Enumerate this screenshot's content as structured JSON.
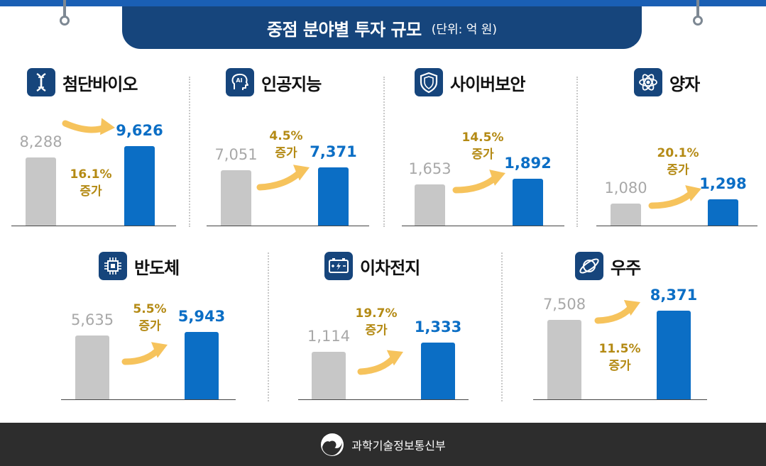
{
  "header": {
    "title": "중점 분야별 투자 규모",
    "unit": "(단위: 억 원)"
  },
  "colors": {
    "title_bg": "#16457c",
    "previous_bar": "#c7c7c7",
    "current_bar": "#0b6ec5",
    "growth_text": "#b48a14",
    "arrow": "#f6c35c",
    "footer_bg": "#2d2d2d"
  },
  "chart_data": [
    {
      "type": "bar",
      "title": "첨단바이오",
      "icon": "dna-icon",
      "categories": [
        "",
        ""
      ],
      "values": [
        8288,
        9626
      ],
      "value_labels": [
        "8,288",
        "9,626"
      ],
      "growth": "16.1%",
      "growth_word": "증가"
    },
    {
      "type": "bar",
      "title": "인공지능",
      "icon": "ai-head-icon",
      "categories": [
        "",
        ""
      ],
      "values": [
        7051,
        7371
      ],
      "value_labels": [
        "7,051",
        "7,371"
      ],
      "growth": "4.5%",
      "growth_word": "증가"
    },
    {
      "type": "bar",
      "title": "사이버보안",
      "icon": "shield-icon",
      "categories": [
        "",
        ""
      ],
      "values": [
        1653,
        1892
      ],
      "value_labels": [
        "1,653",
        "1,892"
      ],
      "growth": "14.5%",
      "growth_word": "증가"
    },
    {
      "type": "bar",
      "title": "양자",
      "icon": "atom-icon",
      "categories": [
        "",
        ""
      ],
      "values": [
        1080,
        1298
      ],
      "value_labels": [
        "1,080",
        "1,298"
      ],
      "growth": "20.1%",
      "growth_word": "증가"
    },
    {
      "type": "bar",
      "title": "반도체",
      "icon": "chip-icon",
      "categories": [
        "",
        ""
      ],
      "values": [
        5635,
        5943
      ],
      "value_labels": [
        "5,635",
        "5,943"
      ],
      "growth": "5.5%",
      "growth_word": "증가"
    },
    {
      "type": "bar",
      "title": "이차전지",
      "icon": "battery-icon",
      "categories": [
        "",
        ""
      ],
      "values": [
        1114,
        1333
      ],
      "value_labels": [
        "1,114",
        "1,333"
      ],
      "growth": "19.7%",
      "growth_word": "증가"
    },
    {
      "type": "bar",
      "title": "우주",
      "icon": "planet-icon",
      "categories": [
        "",
        ""
      ],
      "values": [
        7508,
        8371
      ],
      "value_labels": [
        "7,508",
        "8,371"
      ],
      "growth": "11.5%",
      "growth_word": "증가"
    }
  ],
  "footer": {
    "logo": "government-taegeuk-logo",
    "text": "과학기술정보통신부"
  }
}
